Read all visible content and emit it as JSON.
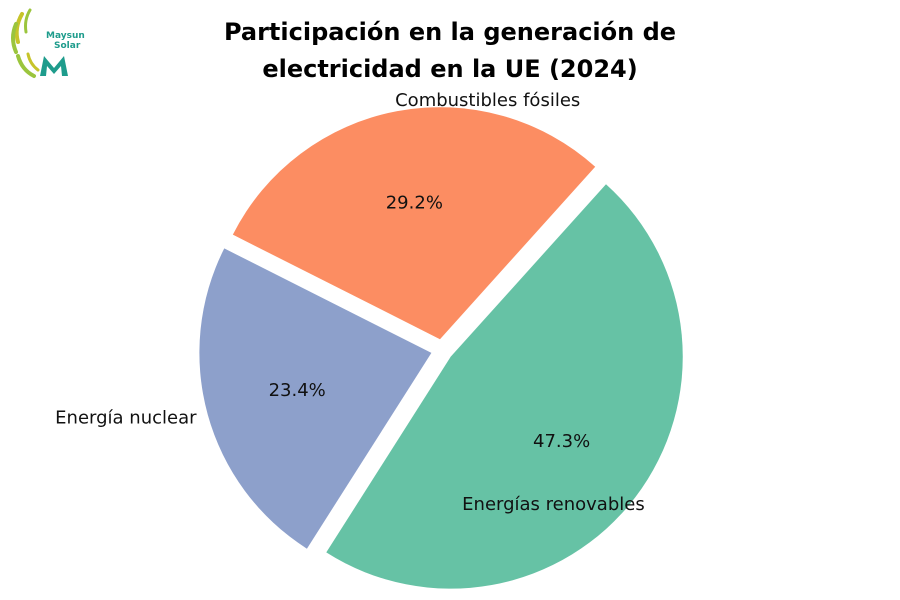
{
  "logo": {
    "line1": "Maysun",
    "line2": "Solar",
    "colors": {
      "green": "#9bc53d",
      "teal": "#1e9c8c",
      "yellow": "#c7c42a"
    }
  },
  "chart_data": {
    "type": "pie",
    "title_line1": "Participación en la generación de",
    "title_line2": "electricidad en la UE (2024)",
    "slices": [
      {
        "label": "Combustibles fósiles",
        "value": 29.2,
        "value_label": "29.2%",
        "color": "#fc8d62"
      },
      {
        "label": "Energía nuclear",
        "value": 23.4,
        "value_label": "23.4%",
        "color": "#8da0cb"
      },
      {
        "label": "Energías renovables",
        "value": 47.3,
        "value_label": "47.3%",
        "color": "#66c2a5"
      }
    ],
    "start_angle_deg": -48,
    "direction": "counterclockwise",
    "exploded": true
  }
}
